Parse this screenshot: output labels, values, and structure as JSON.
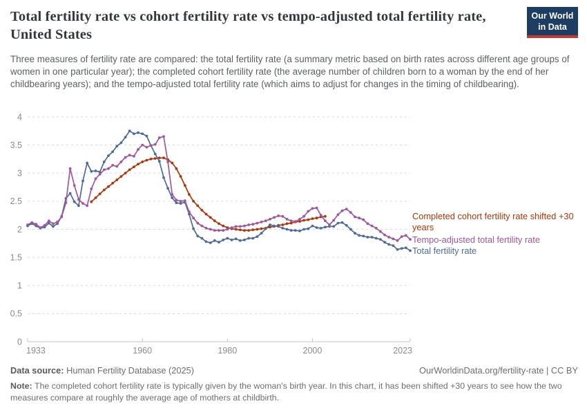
{
  "header": {
    "title": "Total fertility rate vs cohort fertility rate vs tempo-adjusted total fertility rate, United States",
    "logo": {
      "line1": "Our World",
      "line2": "in Data",
      "bg_color": "#1d3d63",
      "accent_color": "#c43a30"
    }
  },
  "subtitle": "Three measures of fertility rate are compared: the total fertility rate (a summary metric based on birth rates across different age groups of women in one particular year); the completed cohort fertility rate (the average number of children born to a woman by the end of her childbearing years); and the tempo-adjusted total fertility rate (which aims to adjust for changes in the timing of childbearing).",
  "legend": [
    {
      "label": "Completed cohort fertility rate shifted +30 years",
      "color": "#B13507"
    },
    {
      "label": "Tempo-adjusted total fertility rate",
      "color": "#A2559C"
    },
    {
      "label": "Total fertility rate",
      "color": "#4C6A9C"
    }
  ],
  "chart_data": {
    "type": "line",
    "title": "Total fertility rate vs cohort fertility rate vs tempo-adjusted total fertility rate, United States",
    "xlabel": "",
    "ylabel": "",
    "xlim": [
      1933,
      2023
    ],
    "ylim": [
      0,
      4
    ],
    "x_ticks": [
      1933,
      1960,
      1980,
      2000,
      2023
    ],
    "y_ticks": [
      0,
      0.5,
      1,
      1.5,
      2,
      2.5,
      3,
      3.5,
      4
    ],
    "grid": "dashed-horizontal",
    "legend_position": "right-of-line-ends",
    "marker": "point",
    "series": [
      {
        "name": "Completed cohort fertility rate shifted +30 years",
        "color": "#B13507",
        "start_year": 1948,
        "values": [
          2.49,
          2.56,
          2.63,
          2.7,
          2.76,
          2.82,
          2.88,
          2.94,
          3.0,
          3.06,
          3.11,
          3.16,
          3.2,
          3.23,
          3.25,
          3.26,
          3.27,
          3.27,
          3.24,
          3.18,
          3.08,
          2.94,
          2.78,
          2.62,
          2.5,
          2.42,
          2.34,
          2.27,
          2.21,
          2.15,
          2.1,
          2.06,
          2.03,
          2.01,
          2.0,
          1.99,
          1.98,
          1.98,
          1.99,
          2.0,
          2.01,
          2.02,
          2.04,
          2.05,
          2.07,
          2.08,
          2.1,
          2.11,
          2.13,
          2.14,
          2.16,
          2.17,
          2.19,
          2.2,
          2.22,
          2.23
        ]
      },
      {
        "name": "Total fertility rate",
        "color": "#4C6A9C",
        "start_year": 1933,
        "values": [
          2.06,
          2.1,
          2.06,
          2.02,
          2.04,
          2.11,
          2.05,
          2.1,
          2.23,
          2.55,
          2.64,
          2.49,
          2.42,
          2.86,
          3.18,
          3.03,
          3.04,
          3.02,
          3.2,
          3.31,
          3.38,
          3.48,
          3.54,
          3.64,
          3.75,
          3.7,
          3.72,
          3.7,
          3.66,
          3.49,
          3.34,
          3.21,
          2.92,
          2.73,
          2.56,
          2.47,
          2.46,
          2.48,
          2.27,
          2.01,
          1.88,
          1.84,
          1.78,
          1.76,
          1.8,
          1.77,
          1.81,
          1.84,
          1.81,
          1.83,
          1.8,
          1.81,
          1.84,
          1.84,
          1.87,
          1.93,
          2.01,
          2.08,
          2.06,
          2.05,
          2.02,
          2.0,
          1.98,
          1.98,
          1.97,
          2.0,
          2.01,
          2.06,
          2.03,
          2.02,
          2.04,
          2.05,
          2.05,
          2.11,
          2.12,
          2.07,
          2.0,
          1.93,
          1.89,
          1.88,
          1.86,
          1.86,
          1.84,
          1.82,
          1.77,
          1.73,
          1.71,
          1.64,
          1.66,
          1.67,
          1.62
        ]
      },
      {
        "name": "Tempo-adjusted total fertility rate",
        "color": "#A2559C",
        "start_year": 1933,
        "values": [
          2.08,
          2.12,
          2.09,
          2.03,
          2.07,
          2.15,
          2.1,
          2.13,
          2.22,
          2.47,
          3.08,
          2.78,
          2.53,
          2.46,
          2.42,
          2.72,
          2.9,
          2.98,
          3.06,
          3.08,
          3.14,
          3.12,
          3.2,
          3.28,
          3.32,
          3.3,
          3.42,
          3.5,
          3.46,
          3.49,
          3.51,
          3.63,
          3.65,
          3.2,
          2.62,
          2.52,
          2.5,
          2.51,
          2.31,
          2.2,
          2.11,
          2.06,
          2.02,
          2.0,
          1.98,
          1.98,
          1.98,
          2.0,
          2.03,
          2.05,
          2.05,
          2.06,
          2.08,
          2.09,
          2.11,
          2.13,
          2.15,
          2.18,
          2.21,
          2.24,
          2.23,
          2.18,
          2.15,
          2.14,
          2.18,
          2.23,
          2.32,
          2.37,
          2.38,
          2.25,
          2.15,
          2.08,
          2.16,
          2.26,
          2.33,
          2.36,
          2.3,
          2.22,
          2.2,
          2.17,
          2.1,
          2.06,
          2.02,
          1.96,
          1.9,
          1.86,
          1.83,
          1.8,
          1.87,
          1.89,
          1.82
        ]
      }
    ]
  },
  "footer": {
    "datasource_label": "Data source:",
    "datasource_value": " Human Fertility Database (2025)",
    "attribution": "OurWorldinData.org/fertility-rate | CC BY",
    "note_label": "Note:",
    "note_text": " The completed cohort fertility rate is typically given by the woman's birth year. In this chart, it has been shifted +30 years to see how the two measures compare at roughly the average age of mothers at childbirth."
  }
}
